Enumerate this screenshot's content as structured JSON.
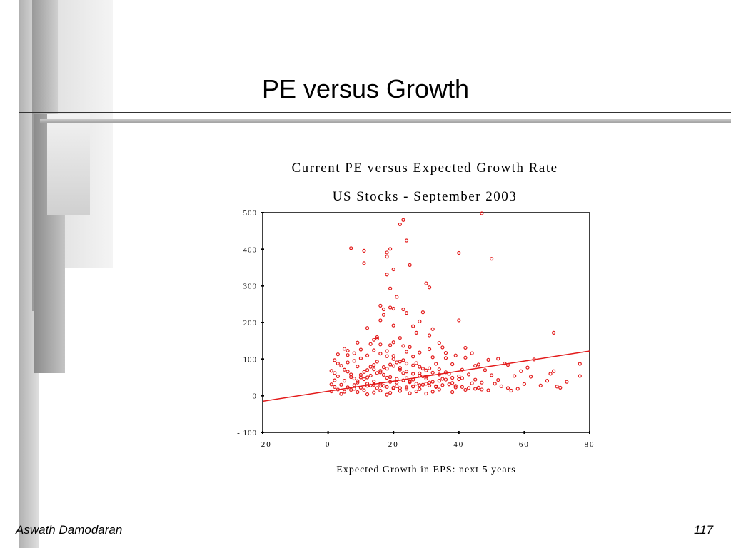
{
  "slide": {
    "title": "PE versus Growth",
    "footer_author": "Aswath Damodaran",
    "page_number": "117"
  },
  "colors": {
    "points": "#e31a1a",
    "trendline": "#e31a1a"
  },
  "chart_data": {
    "type": "scatter",
    "title": "Current PE versus Expected Growth Rate",
    "subtitle": "US Stocks - September 2003",
    "xlabel": "Expected Growth in EPS: next 5 years",
    "ylabel": "",
    "xlim": [
      -20,
      80
    ],
    "ylim": [
      -100,
      500
    ],
    "xticks": [
      "-20",
      "0",
      "20",
      "40",
      "60",
      "80"
    ],
    "yticks": [
      "500",
      "400",
      "300",
      "200",
      "100",
      "0",
      "-100"
    ],
    "grid": false,
    "series": [
      {
        "points": [
          [
            47,
            498
          ],
          [
            23,
            480
          ],
          [
            22,
            468
          ],
          [
            24,
            424
          ],
          [
            7,
            403
          ],
          [
            11,
            396
          ],
          [
            19,
            401
          ],
          [
            18,
            391
          ],
          [
            40,
            390
          ],
          [
            18,
            380
          ],
          [
            50,
            374
          ],
          [
            11,
            362
          ],
          [
            25,
            357
          ],
          [
            20,
            345
          ],
          [
            18,
            331
          ],
          [
            30,
            307
          ],
          [
            31,
            296
          ],
          [
            19,
            293
          ],
          [
            21,
            270
          ],
          [
            16,
            246
          ],
          [
            19,
            241
          ],
          [
            20,
            238
          ],
          [
            17,
            236
          ],
          [
            23,
            236
          ],
          [
            29,
            228
          ],
          [
            24,
            226
          ],
          [
            17,
            221
          ],
          [
            40,
            206
          ],
          [
            16,
            206
          ],
          [
            20,
            192
          ],
          [
            26,
            190
          ],
          [
            12,
            185
          ],
          [
            32,
            182
          ],
          [
            27,
            172
          ],
          [
            69,
            172
          ],
          [
            31,
            165
          ],
          [
            15,
            160
          ],
          [
            22,
            158
          ],
          [
            14,
            153
          ],
          [
            9,
            145
          ],
          [
            13,
            141
          ],
          [
            16,
            140
          ],
          [
            19,
            138
          ],
          [
            23,
            136
          ],
          [
            35,
            132
          ],
          [
            42,
            131
          ],
          [
            5,
            128
          ],
          [
            10,
            126
          ],
          [
            14,
            124
          ],
          [
            18,
            122
          ],
          [
            24,
            120
          ],
          [
            28,
            118
          ],
          [
            44,
            116
          ],
          [
            3,
            113
          ],
          [
            6,
            111
          ],
          [
            12,
            110
          ],
          [
            20,
            109
          ],
          [
            26,
            107
          ],
          [
            32,
            105
          ],
          [
            36,
            103
          ],
          [
            52,
            101
          ],
          [
            63,
            99
          ],
          [
            2,
            97
          ],
          [
            8,
            95
          ],
          [
            15,
            93
          ],
          [
            21,
            91
          ],
          [
            27,
            89
          ],
          [
            33,
            87
          ],
          [
            38,
            86
          ],
          [
            46,
            85
          ],
          [
            55,
            84
          ],
          [
            77,
            87
          ],
          [
            4,
            82
          ],
          [
            9,
            80
          ],
          [
            13,
            79
          ],
          [
            17,
            78
          ],
          [
            22,
            76
          ],
          [
            29,
            74
          ],
          [
            34,
            72
          ],
          [
            41,
            71
          ],
          [
            48,
            70
          ],
          [
            59,
            67
          ],
          [
            1,
            68
          ],
          [
            6,
            66
          ],
          [
            11,
            65
          ],
          [
            16,
            64
          ],
          [
            23,
            62
          ],
          [
            28,
            61
          ],
          [
            37,
            60
          ],
          [
            43,
            58
          ],
          [
            50,
            56
          ],
          [
            57,
            54
          ],
          [
            62,
            52
          ],
          [
            77,
            54
          ],
          [
            3,
            53
          ],
          [
            7,
            51
          ],
          [
            12,
            50
          ],
          [
            18,
            49
          ],
          [
            24,
            48
          ],
          [
            30,
            47
          ],
          [
            35,
            46
          ],
          [
            40,
            45
          ],
          [
            45,
            44
          ],
          [
            52,
            43
          ],
          [
            2,
            42
          ],
          [
            5,
            41
          ],
          [
            9,
            40
          ],
          [
            14,
            39
          ],
          [
            19,
            38
          ],
          [
            25,
            37
          ],
          [
            31,
            36
          ],
          [
            38,
            35
          ],
          [
            44,
            34
          ],
          [
            51,
            33
          ],
          [
            60,
            32
          ],
          [
            73,
            38
          ],
          [
            1,
            31
          ],
          [
            4,
            30
          ],
          [
            8,
            29
          ],
          [
            13,
            28
          ],
          [
            17,
            27
          ],
          [
            21,
            26
          ],
          [
            26,
            25
          ],
          [
            33,
            24
          ],
          [
            39,
            23
          ],
          [
            46,
            22
          ],
          [
            55,
            21
          ],
          [
            70,
            25
          ],
          [
            71,
            22
          ],
          [
            2,
            24
          ],
          [
            6,
            23
          ],
          [
            10,
            22
          ],
          [
            15,
            21
          ],
          [
            20,
            20
          ],
          [
            24,
            19
          ],
          [
            28,
            18
          ],
          [
            34,
            17
          ],
          [
            42,
            16
          ],
          [
            49,
            15
          ],
          [
            56,
            14
          ],
          [
            3,
            17
          ],
          [
            7,
            16
          ],
          [
            11,
            15
          ],
          [
            16,
            14
          ],
          [
            22,
            13
          ],
          [
            27,
            12
          ],
          [
            32,
            11
          ],
          [
            38,
            10
          ],
          [
            1,
            12
          ],
          [
            5,
            11
          ],
          [
            9,
            10
          ],
          [
            14,
            9
          ],
          [
            19,
            8
          ],
          [
            25,
            7
          ],
          [
            30,
            6
          ],
          [
            4,
            5
          ],
          [
            12,
            4
          ],
          [
            18,
            3
          ],
          [
            8,
            19
          ],
          [
            12,
            27
          ],
          [
            16,
            33
          ],
          [
            21,
            36
          ],
          [
            26,
            44
          ],
          [
            29,
            53
          ],
          [
            10,
            57
          ],
          [
            14,
            72
          ],
          [
            19,
            85
          ],
          [
            23,
            97
          ],
          [
            31,
            75
          ],
          [
            36,
            64
          ],
          [
            41,
            48
          ],
          [
            47,
            36
          ],
          [
            53,
            26
          ],
          [
            58,
            19
          ],
          [
            65,
            28
          ],
          [
            67,
            41
          ],
          [
            68,
            60
          ],
          [
            69,
            67
          ],
          [
            61,
            77
          ],
          [
            54,
            88
          ],
          [
            49,
            98
          ],
          [
            42,
            104
          ],
          [
            36,
            117
          ],
          [
            31,
            127
          ],
          [
            25,
            133
          ],
          [
            20,
            146
          ],
          [
            15,
            156
          ],
          [
            28,
            203
          ],
          [
            34,
            144
          ],
          [
            39,
            110
          ],
          [
            45,
            82
          ],
          [
            6,
            91
          ],
          [
            3,
            88
          ],
          [
            5,
            71
          ],
          [
            2,
            62
          ],
          [
            7,
            58
          ],
          [
            11,
            45
          ],
          [
            13,
            55
          ],
          [
            15,
            62
          ],
          [
            17,
            57
          ],
          [
            19,
            51
          ],
          [
            21,
            46
          ],
          [
            23,
            42
          ],
          [
            25,
            39
          ],
          [
            27,
            33
          ],
          [
            29,
            30
          ],
          [
            31,
            28
          ],
          [
            33,
            26
          ],
          [
            35,
            29
          ],
          [
            37,
            31
          ],
          [
            39,
            27
          ],
          [
            41,
            24
          ],
          [
            43,
            21
          ],
          [
            45,
            19
          ],
          [
            47,
            17
          ],
          [
            9,
            36
          ],
          [
            12,
            33
          ],
          [
            14,
            30
          ],
          [
            16,
            27
          ],
          [
            18,
            24
          ],
          [
            20,
            22
          ],
          [
            22,
            21
          ],
          [
            24,
            23
          ],
          [
            26,
            26
          ],
          [
            28,
            29
          ],
          [
            30,
            33
          ],
          [
            32,
            38
          ],
          [
            34,
            41
          ],
          [
            36,
            44
          ],
          [
            38,
            49
          ],
          [
            40,
            53
          ],
          [
            8,
            47
          ],
          [
            10,
            50
          ],
          [
            16,
            68
          ],
          [
            18,
            74
          ],
          [
            20,
            81
          ],
          [
            22,
            71
          ],
          [
            24,
            66
          ],
          [
            26,
            60
          ],
          [
            28,
            55
          ],
          [
            30,
            52
          ],
          [
            12,
            70
          ],
          [
            14,
            84
          ],
          [
            10,
            102
          ],
          [
            8,
            116
          ],
          [
            6,
            123
          ],
          [
            16,
            115
          ],
          [
            18,
            108
          ],
          [
            20,
            100
          ],
          [
            22,
            93
          ],
          [
            24,
            88
          ],
          [
            26,
            83
          ],
          [
            28,
            79
          ],
          [
            30,
            69
          ],
          [
            32,
            63
          ],
          [
            34,
            58
          ]
        ]
      }
    ],
    "trendline": {
      "x": [
        -20,
        80
      ],
      "y": [
        -15,
        122
      ]
    }
  }
}
